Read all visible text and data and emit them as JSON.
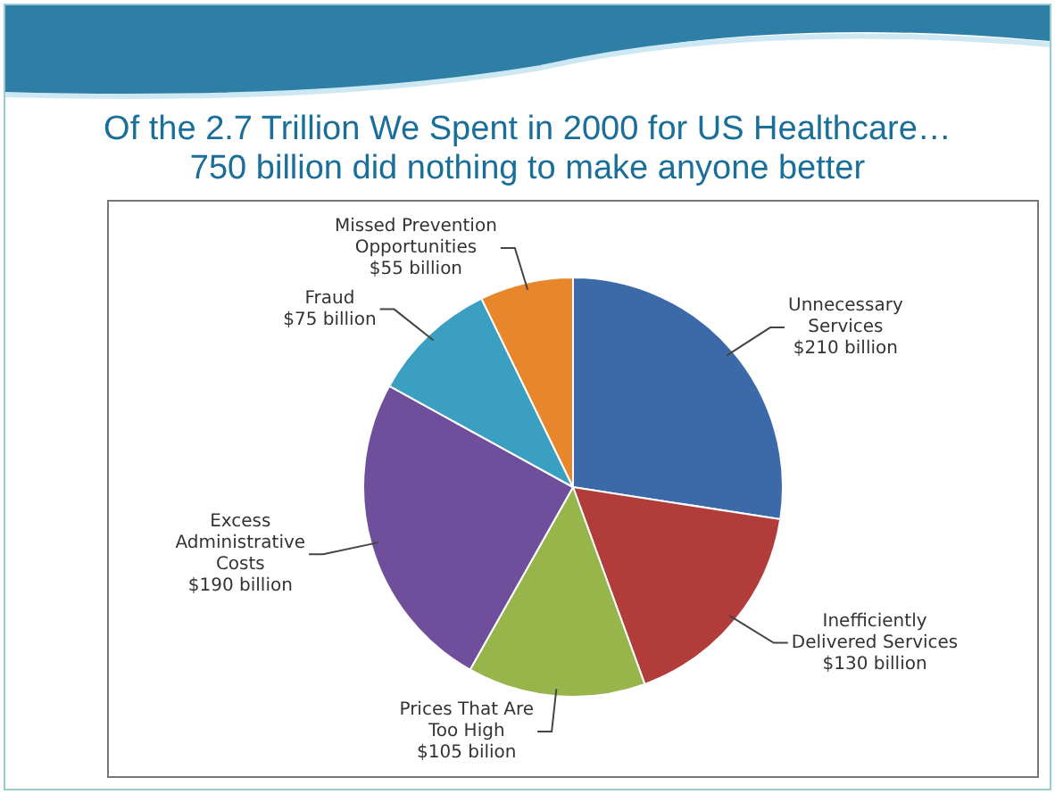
{
  "chart_data": {
    "type": "pie",
    "title": "Of the 2.7 Trillion We Spent in 2000 for US Healthcare…",
    "subtitle": "750 billion did nothing to make anyone better",
    "categories": [
      "Unnecessary Services",
      "Inefficiently Delivered Services",
      "Prices That Are Too High",
      "Excess Administrative Costs",
      "Fraud",
      "Missed Prevention Opportunities"
    ],
    "values": [
      210,
      130,
      105,
      190,
      75,
      55
    ],
    "value_labels": [
      "$210 billion",
      "$130 billion",
      "$105 bilion",
      "$190 billion",
      "$75 billion",
      "$55 billion"
    ],
    "colors": [
      "#3c6aa8",
      "#b23c3a",
      "#97b54b",
      "#6f4f9c",
      "#3a9fc0",
      "#e8862c"
    ],
    "legend": false
  }
}
